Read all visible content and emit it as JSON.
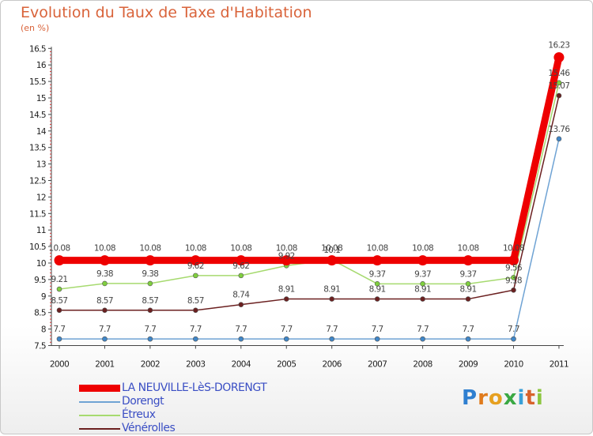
{
  "title": "Evolution du Taux de Taxe d'Habitation",
  "subtitle": "(en %)",
  "logo": {
    "letters": [
      "P",
      "r",
      "o",
      "x",
      "i",
      "t",
      "i"
    ],
    "colors": [
      "#2f7fd0",
      "#e07b1d",
      "#e6a020",
      "#3aa843",
      "#3aa0d8",
      "#d8622c",
      "#8cc63f"
    ]
  },
  "chart_data": {
    "type": "line",
    "title": "Evolution du Taux de Taxe d'Habitation",
    "ylabel": "(en %)",
    "categories": [
      "2000",
      "2001",
      "2002",
      "2003",
      "2004",
      "2005",
      "2006",
      "2007",
      "2008",
      "2009",
      "2010",
      "2011"
    ],
    "yticks": [
      "7.5",
      "8",
      "8.5",
      "9",
      "9.5",
      "10",
      "10.5",
      "11",
      "11.5",
      "12",
      "12.5",
      "13",
      "13.5",
      "14",
      "14.5",
      "15",
      "15.5",
      "16",
      "16.5"
    ],
    "ylim": [
      7.5,
      16.5
    ],
    "grid": false,
    "series": [
      {
        "name": "Dorengt",
        "color": "#6fa3d4",
        "marker": "#3f86c8",
        "values": [
          7.7,
          7.7,
          7.7,
          7.7,
          7.7,
          7.7,
          7.7,
          7.7,
          7.7,
          7.7,
          7.7,
          13.76
        ],
        "labels": [
          "7.7",
          "7.7",
          "7.7",
          "7.7",
          "7.7",
          "7.7",
          "7.7",
          "7.7",
          "7.7",
          "7.7",
          "7.7",
          "13.76"
        ]
      },
      {
        "name": "Étreux",
        "color": "#a6da6f",
        "marker": "#7fcf3e",
        "values": [
          9.21,
          9.38,
          9.38,
          9.62,
          9.62,
          9.92,
          10.1,
          9.37,
          9.37,
          9.37,
          9.56,
          15.46
        ],
        "labels": [
          "9.21",
          "9.38",
          "9.38",
          "9.62",
          "9.62",
          "9.92",
          "10.1",
          "9.37",
          "9.37",
          "9.37",
          "9.56",
          "15.46"
        ]
      },
      {
        "name": "Vénérolles",
        "color": "#6b2020",
        "marker": "#6b2020",
        "values": [
          8.57,
          8.57,
          8.57,
          8.57,
          8.74,
          8.91,
          8.91,
          8.91,
          8.91,
          8.91,
          9.18,
          15.07
        ],
        "labels": [
          "8.57",
          "8.57",
          "8.57",
          "8.57",
          "8.74",
          "8.91",
          "8.91",
          "8.91",
          "8.91",
          "8.91",
          "9.18",
          "15.07"
        ]
      },
      {
        "name": "LA NEUVILLE-LèS-DORENGT",
        "color": "#ee0000",
        "marker": "#ee0000",
        "values": [
          10.08,
          10.08,
          10.08,
          10.08,
          10.08,
          10.08,
          10.08,
          10.08,
          10.08,
          10.08,
          10.08,
          16.23
        ],
        "labels": [
          "10.08",
          "10.08",
          "10.08",
          "10.08",
          "10.08",
          "10.08",
          "10.08",
          "10.08",
          "10.08",
          "10.08",
          "10.08",
          "16.23"
        ]
      }
    ],
    "legend": [
      "LA NEUVILLE-LèS-DORENGT",
      "Dorengt",
      "Étreux",
      "Vénérolles"
    ],
    "legend_position": "bottom-left"
  }
}
